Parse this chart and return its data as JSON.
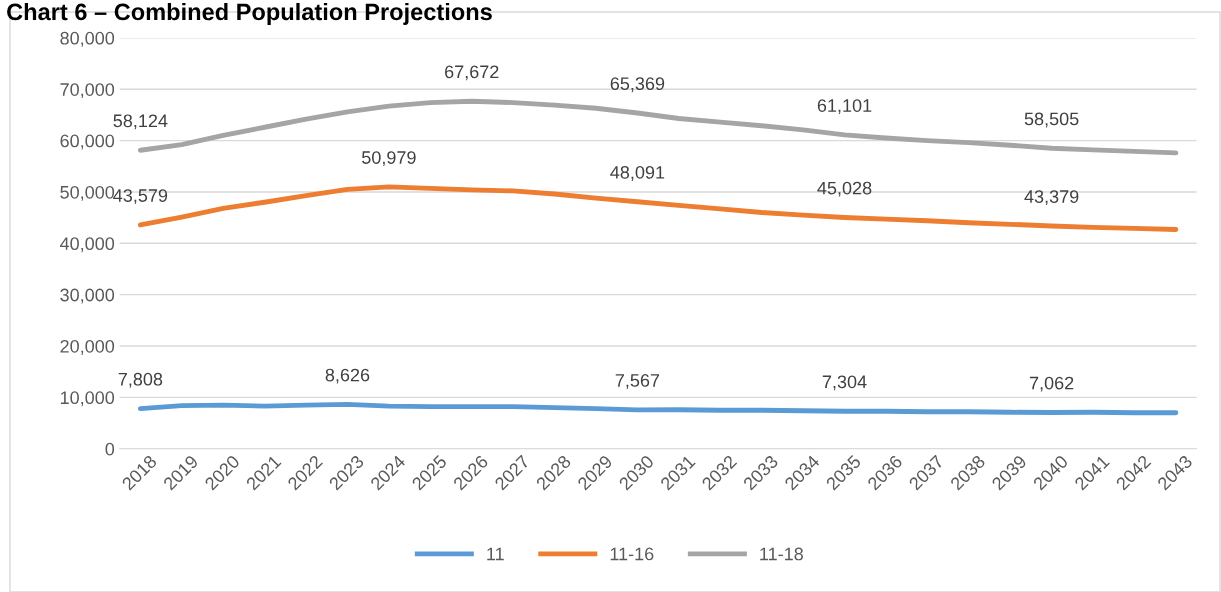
{
  "chart_data": {
    "type": "line",
    "title": "Chart 6 – Combined Population Projections",
    "categories": [
      "2018",
      "2019",
      "2020",
      "2021",
      "2022",
      "2023",
      "2024",
      "2025",
      "2026",
      "2027",
      "2028",
      "2029",
      "2030",
      "2031",
      "2032",
      "2033",
      "2034",
      "2035",
      "2036",
      "2037",
      "2038",
      "2039",
      "2040",
      "2041",
      "2042",
      "2043"
    ],
    "series": [
      {
        "name": "11",
        "color": "#5b9bd5",
        "values": [
          7808,
          8400,
          8500,
          8300,
          8500,
          8626,
          8300,
          8200,
          8200,
          8200,
          8000,
          7800,
          7567,
          7600,
          7500,
          7500,
          7400,
          7304,
          7300,
          7200,
          7200,
          7100,
          7062,
          7100,
          7000,
          7000
        ],
        "value_labels": [
          "7,808",
          null,
          null,
          null,
          null,
          "8,626",
          null,
          null,
          null,
          null,
          null,
          null,
          "7,567",
          null,
          null,
          null,
          null,
          "7,304",
          null,
          null,
          null,
          null,
          "7,062",
          null,
          null,
          null
        ]
      },
      {
        "name": "11-16",
        "color": "#ed7d31",
        "values": [
          43579,
          45100,
          46800,
          48000,
          49300,
          50500,
          50979,
          50700,
          50400,
          50200,
          49600,
          48800,
          48091,
          47400,
          46700,
          46000,
          45500,
          45028,
          44700,
          44400,
          44000,
          43700,
          43379,
          43100,
          42900,
          42700
        ],
        "value_labels": [
          "43,579",
          null,
          null,
          null,
          null,
          null,
          "50,979",
          null,
          null,
          null,
          null,
          null,
          "48,091",
          null,
          null,
          null,
          null,
          "45,028",
          null,
          null,
          null,
          null,
          "43,379",
          null,
          null,
          null
        ]
      },
      {
        "name": "11-18",
        "color": "#a5a5a5",
        "values": [
          58124,
          59200,
          61000,
          62600,
          64200,
          65600,
          66700,
          67400,
          67672,
          67400,
          66900,
          66300,
          65369,
          64300,
          63600,
          62900,
          62100,
          61101,
          60500,
          60000,
          59600,
          59100,
          58505,
          58200,
          57900,
          57600
        ],
        "value_labels": [
          "58,124",
          null,
          null,
          null,
          null,
          null,
          null,
          null,
          "67,672",
          null,
          null,
          null,
          "65,369",
          null,
          null,
          null,
          null,
          "61,101",
          null,
          null,
          null,
          null,
          "58,505",
          null,
          null,
          null
        ]
      }
    ],
    "ylim": [
      0,
      80000
    ],
    "yticks": [
      {
        "value": 0,
        "label": "0"
      },
      {
        "value": 10000,
        "label": "10,000"
      },
      {
        "value": 20000,
        "label": "20,000"
      },
      {
        "value": 30000,
        "label": "30,000"
      },
      {
        "value": 40000,
        "label": "40,000"
      },
      {
        "value": 50000,
        "label": "50,000"
      },
      {
        "value": 60000,
        "label": "60,000"
      },
      {
        "value": 70000,
        "label": "70,000"
      },
      {
        "value": 80000,
        "label": "80,000"
      }
    ],
    "grid": "y",
    "legend": "bottom",
    "marker": "none",
    "line_style": "solid"
  }
}
